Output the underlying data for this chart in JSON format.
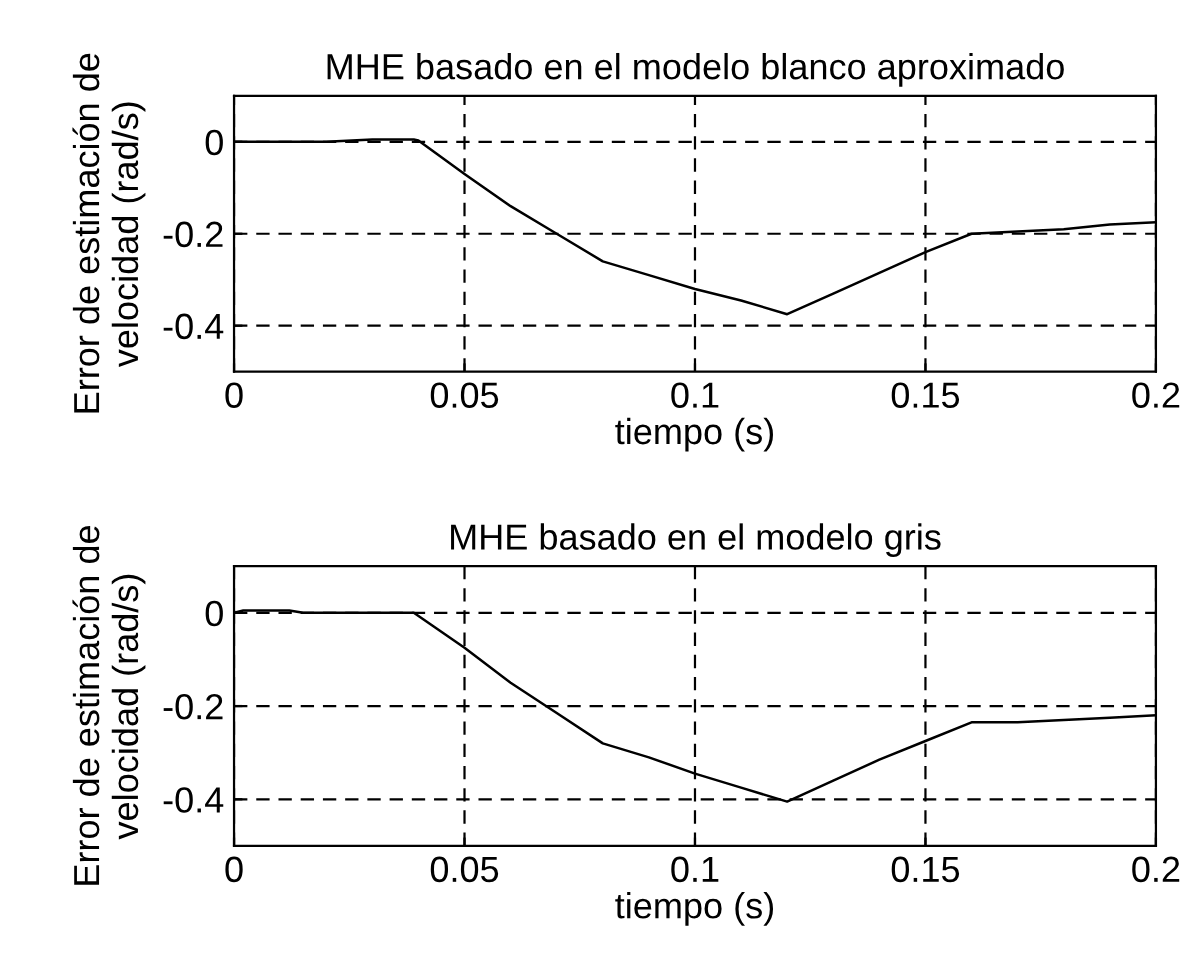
{
  "chart_data": [
    {
      "type": "line",
      "title": "MHE basado en el modelo blanco aproximado",
      "xlabel": "tiempo (s)",
      "ylabel": "Error de estimación de velocidad (rad/s)",
      "xlim": [
        0,
        0.2
      ],
      "xticks": [
        0,
        0.05,
        0.1,
        0.15,
        0.2
      ],
      "ylim": [
        -0.5,
        0.1
      ],
      "yticks": [
        0,
        -0.2,
        -0.4
      ],
      "grid": true,
      "line_style": "solid",
      "series": [
        {
          "color": "#000000",
          "x": [
            0,
            0.01,
            0.02,
            0.03,
            0.039,
            0.04,
            0.05,
            0.06,
            0.07,
            0.08,
            0.09,
            0.1,
            0.11,
            0.12,
            0.13,
            0.14,
            0.15,
            0.16,
            0.17,
            0.18,
            0.19,
            0.2
          ],
          "values": [
            0,
            0,
            0,
            0.005,
            0.005,
            0.003,
            -0.07,
            -0.14,
            -0.2,
            -0.26,
            -0.29,
            -0.32,
            -0.345,
            -0.375,
            -0.33,
            -0.285,
            -0.24,
            -0.2,
            -0.195,
            -0.19,
            -0.18,
            -0.175
          ]
        }
      ]
    },
    {
      "type": "line",
      "title": "MHE basado en el modelo gris",
      "xlabel": "tiempo (s)",
      "ylabel": "Error de estimación de velocidad (rad/s)",
      "xlim": [
        0,
        0.2
      ],
      "xticks": [
        0,
        0.05,
        0.1,
        0.15,
        0.2
      ],
      "ylim": [
        -0.5,
        0.1
      ],
      "yticks": [
        0,
        -0.2,
        -0.4
      ],
      "grid": true,
      "line_style": "solid",
      "series": [
        {
          "color": "#000000",
          "x": [
            0,
            0.002,
            0.012,
            0.015,
            0.039,
            0.05,
            0.06,
            0.07,
            0.08,
            0.09,
            0.1,
            0.11,
            0.12,
            0.13,
            0.14,
            0.15,
            0.16,
            0.17,
            0.18,
            0.19,
            0.2
          ],
          "values": [
            0,
            0.005,
            0.005,
            0,
            0,
            -0.075,
            -0.15,
            -0.215,
            -0.28,
            -0.31,
            -0.345,
            -0.375,
            -0.405,
            -0.36,
            -0.315,
            -0.275,
            -0.235,
            -0.235,
            -0.23,
            -0.225,
            -0.22
          ]
        }
      ]
    }
  ]
}
